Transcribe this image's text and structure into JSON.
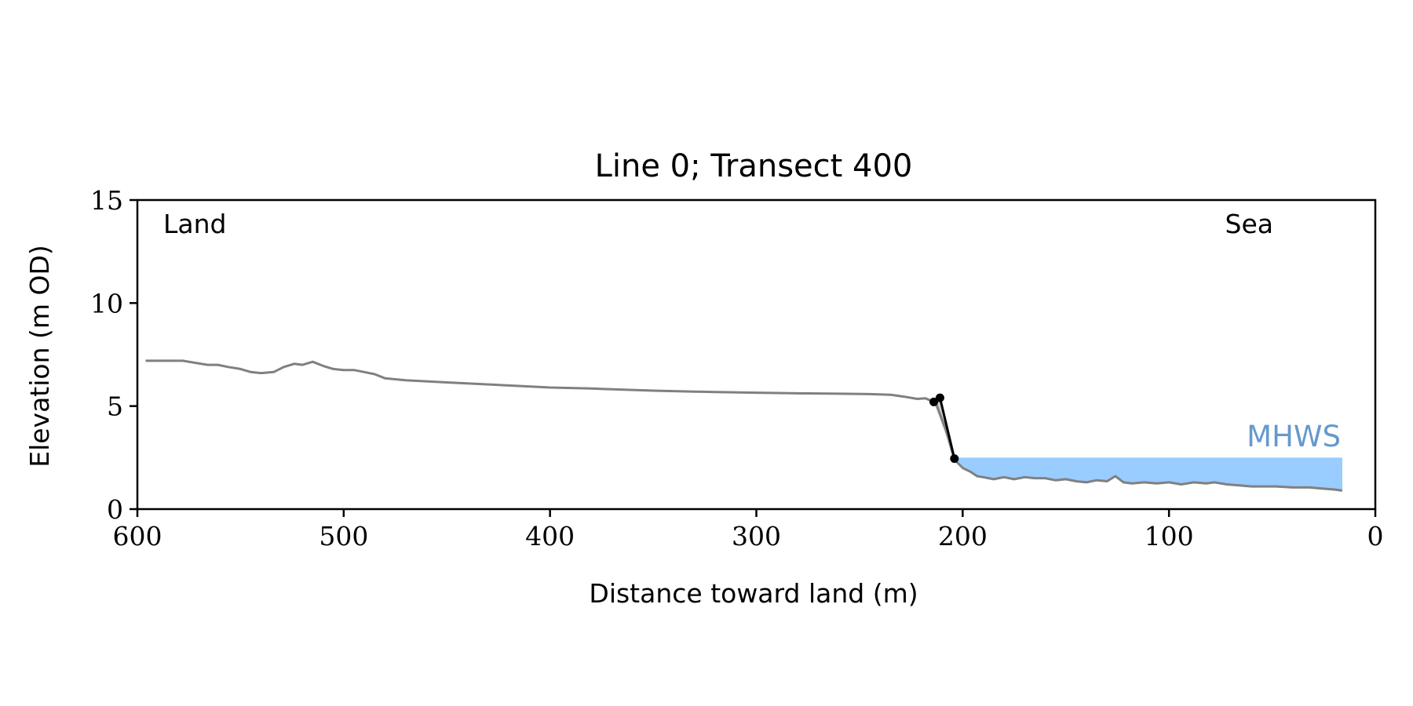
{
  "chart_data": {
    "type": "line",
    "title": "Line 0; Transect 400",
    "xlabel": "Distance toward land (m)",
    "ylabel": "Elevation (m OD)",
    "xlim": [
      600,
      0
    ],
    "ylim": [
      0,
      15
    ],
    "x_inverted": true,
    "grid": false,
    "x_ticks": [
      600,
      500,
      400,
      300,
      200,
      100,
      0
    ],
    "y_ticks": [
      0,
      5,
      10,
      15
    ],
    "annotations": {
      "land": "Land",
      "sea": "Sea",
      "mhws_label": "MHWS"
    },
    "mhws": {
      "elevation": 2.5,
      "x_range": [
        204,
        16
      ]
    },
    "profile": {
      "x": [
        596,
        590,
        584,
        578,
        572,
        566,
        561,
        556,
        550,
        545,
        540,
        534,
        529,
        524,
        520,
        515,
        510,
        505,
        500,
        495,
        490,
        485,
        480,
        470,
        450,
        420,
        400,
        380,
        350,
        320,
        300,
        280,
        260,
        245,
        235,
        228,
        222,
        218,
        213,
        208,
        204,
        200,
        196,
        193,
        190,
        185,
        180,
        175,
        170,
        165,
        160,
        155,
        150,
        145,
        140,
        135,
        130,
        126,
        122,
        118,
        112,
        106,
        100,
        94,
        88,
        82,
        78,
        72,
        66,
        60,
        54,
        48,
        40,
        32,
        26,
        20,
        16
      ],
      "y": [
        7.2,
        7.2,
        7.2,
        7.2,
        7.1,
        7.0,
        7.0,
        6.9,
        6.8,
        6.65,
        6.6,
        6.65,
        6.9,
        7.05,
        7.0,
        7.15,
        6.95,
        6.8,
        6.75,
        6.75,
        6.65,
        6.55,
        6.35,
        6.25,
        6.15,
        6.0,
        5.9,
        5.85,
        5.75,
        5.68,
        5.65,
        5.62,
        5.6,
        5.58,
        5.55,
        5.45,
        5.35,
        5.38,
        5.15,
        3.8,
        2.4,
        2.0,
        1.8,
        1.6,
        1.55,
        1.45,
        1.55,
        1.45,
        1.55,
        1.5,
        1.5,
        1.4,
        1.45,
        1.35,
        1.3,
        1.4,
        1.35,
        1.6,
        1.3,
        1.25,
        1.3,
        1.25,
        1.3,
        1.2,
        1.3,
        1.25,
        1.3,
        1.2,
        1.15,
        1.1,
        1.1,
        1.1,
        1.05,
        1.05,
        1.0,
        0.95,
        0.9
      ]
    },
    "cliff": {
      "x": [
        214,
        211,
        204
      ],
      "y": [
        5.2,
        5.4,
        2.45
      ]
    }
  }
}
